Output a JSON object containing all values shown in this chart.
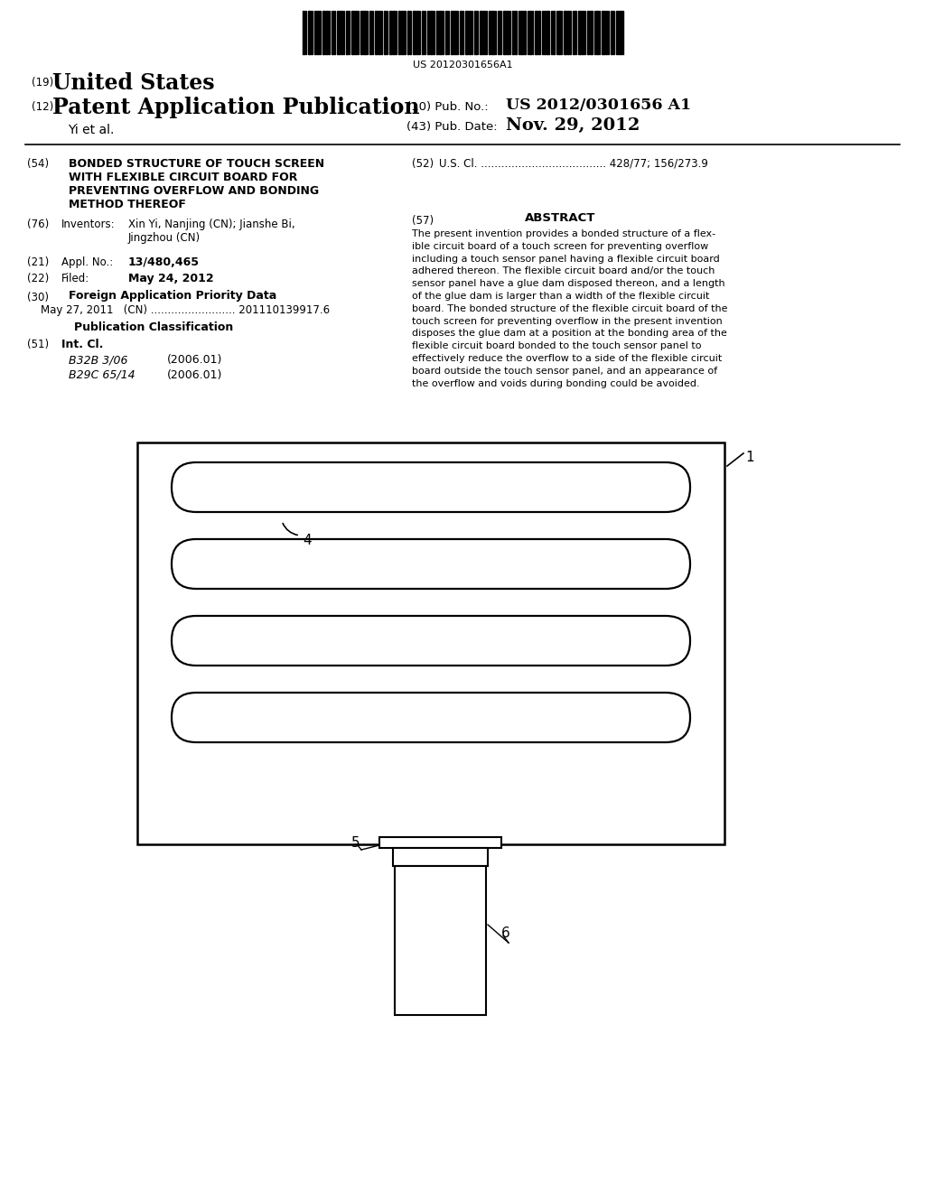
{
  "bg_color": "#ffffff",
  "barcode_text": "US 20120301656A1",
  "title_19": "(19)",
  "united_states": "United States",
  "title_12": "(12)",
  "patent_app_pub": "Patent Application Publication",
  "inventors_line": "Yi et al.",
  "pub_no_label": "(10) Pub. No.:",
  "pub_no_val": "US 2012/0301656 A1",
  "pub_date_label": "(43) Pub. Date:",
  "pub_date_val": "Nov. 29, 2012",
  "s54_label": "(54)",
  "s54_text": "BONDED STRUCTURE OF TOUCH SCREEN\nWITH FLEXIBLE CIRCUIT BOARD FOR\nPREVENTING OVERFLOW AND BONDING\nMETHOD THEREOF",
  "s52_label": "(52)",
  "s52_text": "U.S. Cl. ..................................... 428/77; 156/273.9",
  "s76_label": "(76)",
  "s76_field": "Inventors:",
  "s76_val_1": "Xin Yi, Nanjing (CN); Jianshe Bi,",
  "s76_val_2": "Jingzhou (CN)",
  "s57_label": "(57)",
  "s57_title": "ABSTRACT",
  "s57_text": "The present invention provides a bonded structure of a flex-\nible circuit board of a touch screen for preventing overflow\nincluding a touch sensor panel having a flexible circuit board\nadhered thereon. The flexible circuit board and/or the touch\nsensor panel have a glue dam disposed thereon, and a length\nof the glue dam is larger than a width of the flexible circuit\nboard. The bonded structure of the flexible circuit board of the\ntouch screen for preventing overflow in the present invention\ndisposes the glue dam at a position at the bonding area of the\nflexible circuit board bonded to the touch sensor panel to\neffectively reduce the overflow to a side of the flexible circuit\nboard outside the touch sensor panel, and an appearance of\nthe overflow and voids during bonding could be avoided.",
  "s21_label": "(21)",
  "s21_field": "Appl. No.:",
  "s21_val": "13/480,465",
  "s22_label": "(22)",
  "s22_field": "Filed:",
  "s22_val": "May 24, 2012",
  "s30_label": "(30)",
  "s30_field": "Foreign Application Priority Data",
  "s30_line": "May 27, 2011   (CN) ......................... 201110139917.6",
  "pub_class_title": "Publication Classification",
  "s51_label": "(51)",
  "s51_field": "Int. Cl.",
  "s51_line1_class": "B32B 3/06",
  "s51_line1_date": "(2006.01)",
  "s51_line2_class": "B29C 65/14",
  "s51_line2_date": "(2006.01)",
  "diagram_label_4": "4",
  "diagram_label_1": "1",
  "diagram_label_5": "5",
  "diagram_label_6": "6"
}
